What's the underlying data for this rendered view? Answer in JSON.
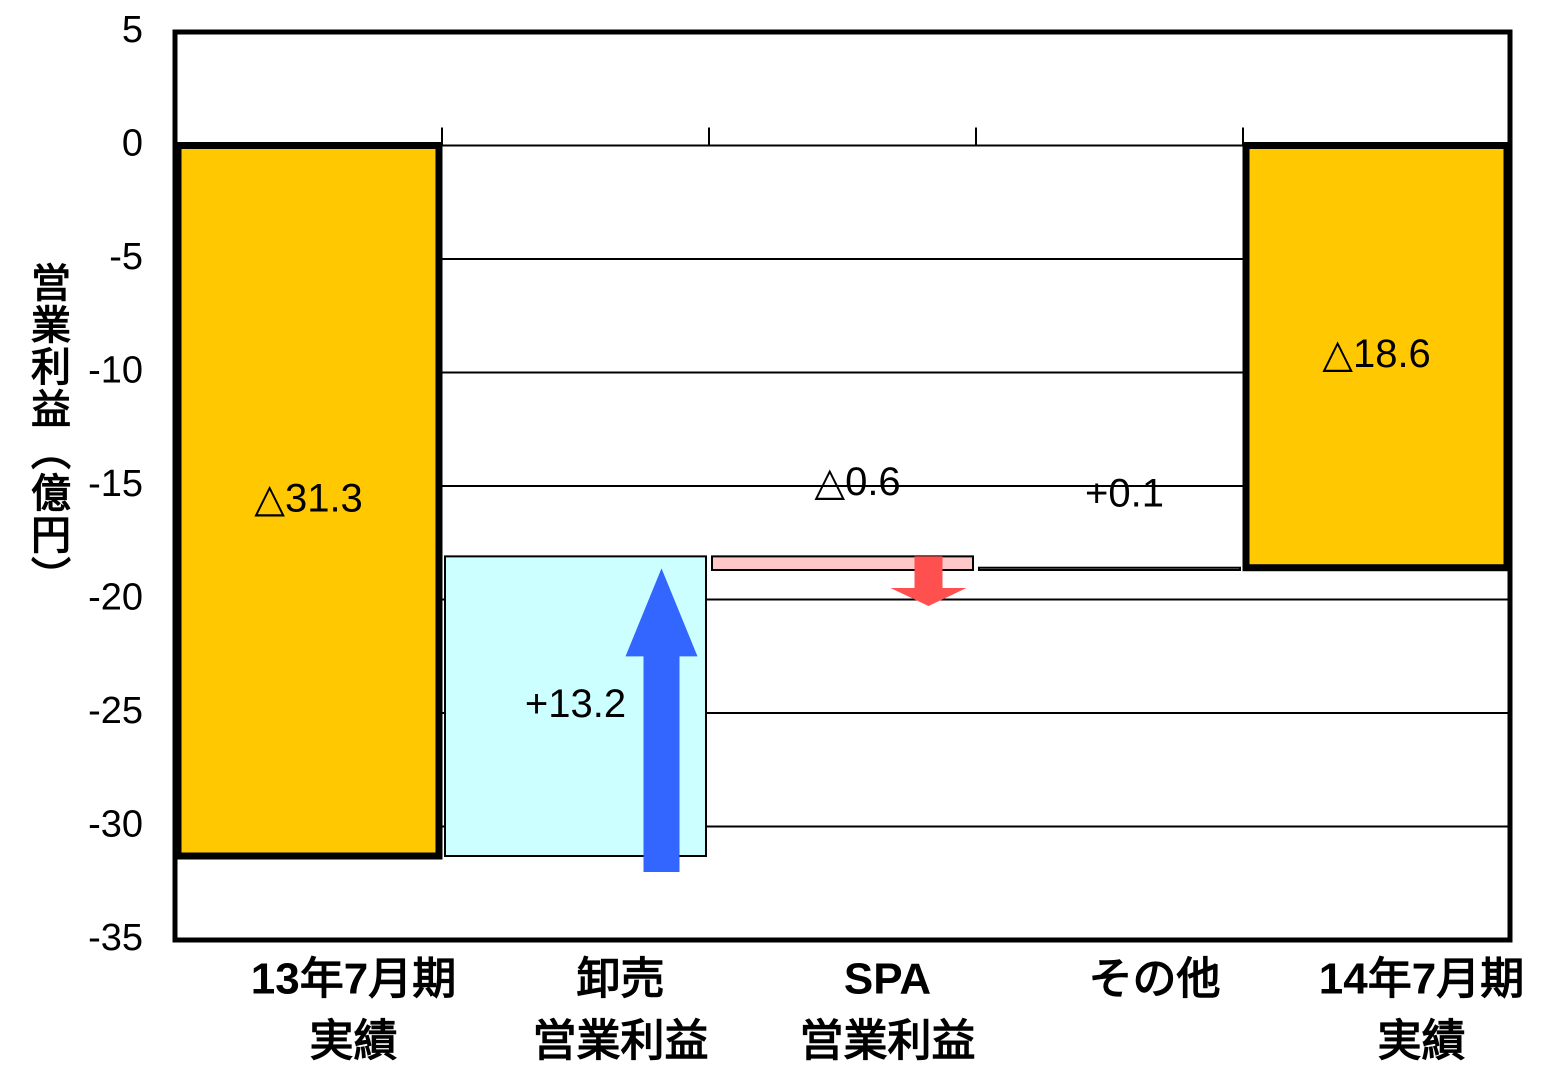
{
  "chart_data": {
    "type": "waterfall",
    "ylabel": "営業利益（億円）",
    "categories": [
      [
        "13年7月期",
        "実績"
      ],
      [
        "卸売",
        "営業利益"
      ],
      [
        "SPA",
        "営業利益"
      ],
      [
        "その他"
      ],
      [
        "14年7月期",
        "実績"
      ]
    ],
    "values": [
      -31.3,
      13.2,
      -0.6,
      0.1,
      -18.6
    ],
    "value_labels": [
      "△31.3",
      "+13.2",
      "△0.6",
      "+0.1",
      "△18.6"
    ],
    "totals": [
      true,
      false,
      false,
      false,
      true
    ],
    "colors": [
      "#ffc800",
      "#ccffff",
      "#ffc8c8",
      "#ffffff",
      "#ffc800"
    ],
    "arrow_colors": {
      "increase": "#3366ff",
      "decrease": "#ff5050"
    },
    "ylim": [
      -35,
      5
    ],
    "yticks": [
      5,
      0,
      -5,
      -10,
      -15,
      -20,
      -25,
      -30,
      -35
    ],
    "grid": true
  }
}
